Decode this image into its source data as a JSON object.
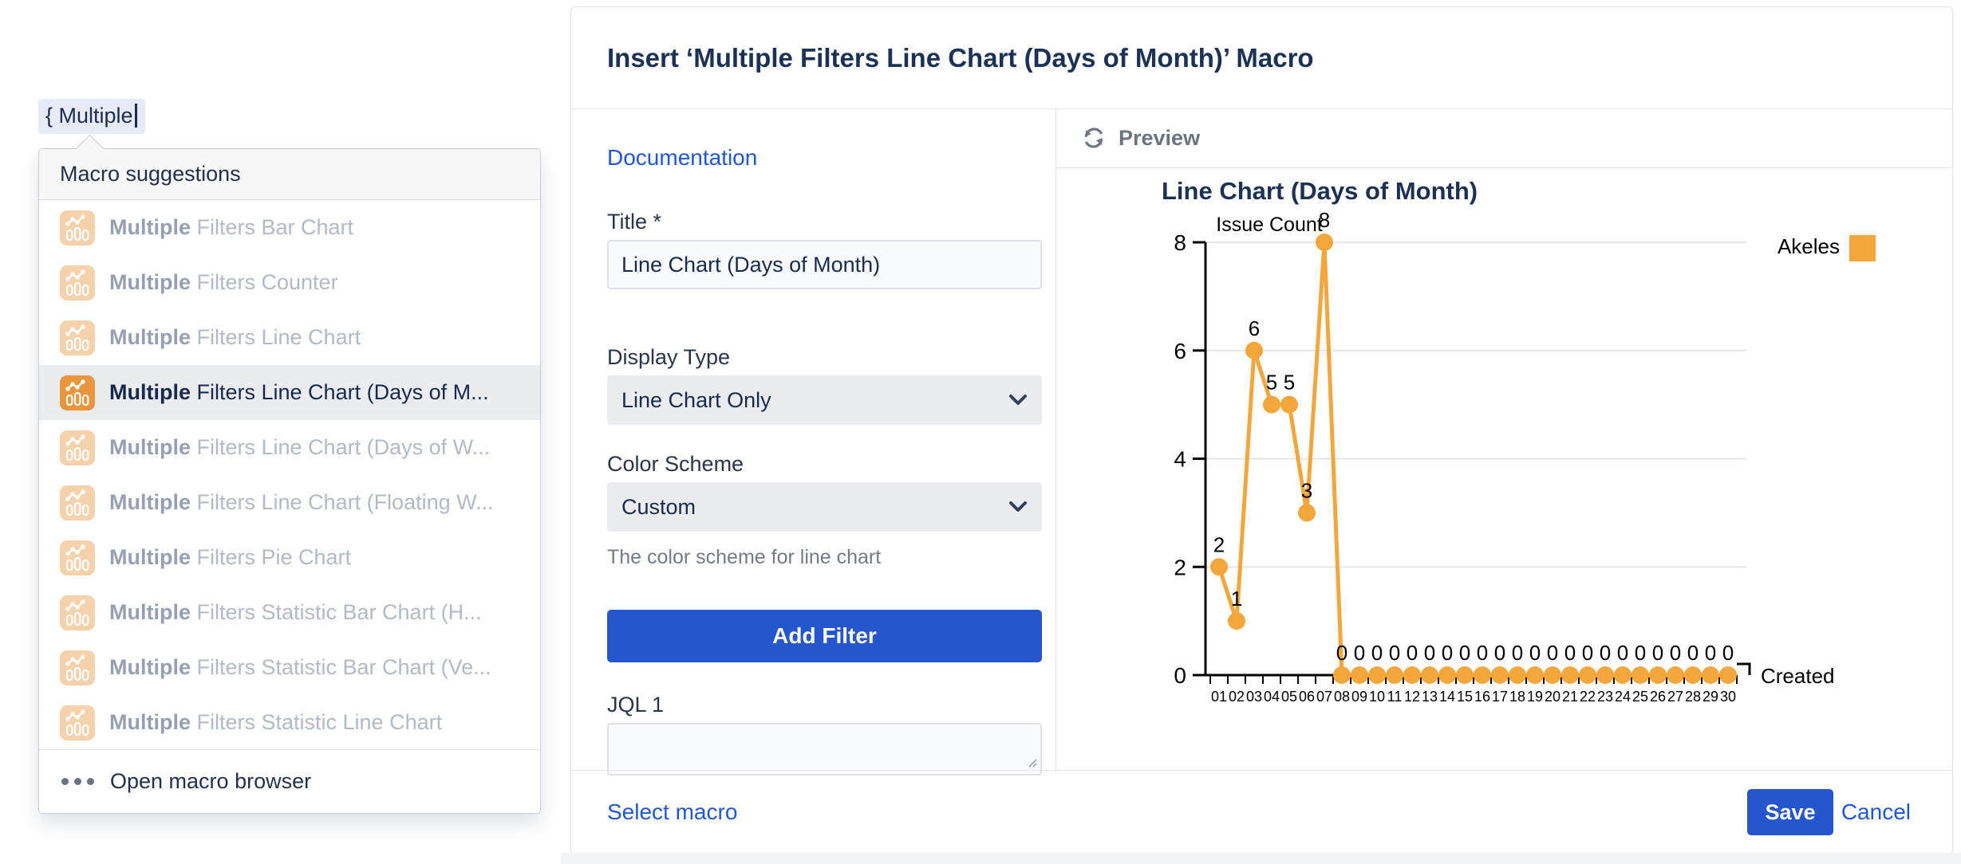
{
  "editor": {
    "token_text": "{ Multiple",
    "suggestions": {
      "header": "Macro suggestions",
      "items": [
        {
          "bold": "Multiple",
          "rest": " Filters Bar Chart",
          "selected": false
        },
        {
          "bold": "Multiple",
          "rest": " Filters Counter",
          "selected": false
        },
        {
          "bold": "Multiple",
          "rest": " Filters Line Chart",
          "selected": false
        },
        {
          "bold": "Multiple",
          "rest": " Filters Line Chart (Days of M...",
          "selected": true
        },
        {
          "bold": "Multiple",
          "rest": " Filters Line Chart (Days of W...",
          "selected": false
        },
        {
          "bold": "Multiple",
          "rest": " Filters Line Chart (Floating W...",
          "selected": false
        },
        {
          "bold": "Multiple",
          "rest": " Filters Pie Chart",
          "selected": false
        },
        {
          "bold": "Multiple",
          "rest": " Filters Statistic Bar Chart (H...",
          "selected": false
        },
        {
          "bold": "Multiple",
          "rest": " Filters Statistic Bar Chart (Ve...",
          "selected": false
        },
        {
          "bold": "Multiple",
          "rest": " Filters Statistic Line Chart",
          "selected": false
        }
      ],
      "footer_label": "Open macro browser"
    }
  },
  "dialog": {
    "title": "Insert ‘Multiple Filters Line Chart (Days of Month)’ Macro",
    "form": {
      "documentation_label": "Documentation",
      "title_field": {
        "label": "Title *",
        "value": "Line Chart (Days of Month)"
      },
      "display_type": {
        "label": "Display Type",
        "value": "Line Chart Only"
      },
      "color_scheme": {
        "label": "Color Scheme",
        "value": "Custom",
        "help": "The color scheme for line chart"
      },
      "add_filter_label": "Add Filter",
      "jql1": {
        "label": "JQL 1",
        "value": ""
      }
    },
    "preview_label": "Preview",
    "footer": {
      "select_macro": "Select macro",
      "save": "Save",
      "cancel": "Cancel"
    }
  },
  "chart_data": {
    "type": "line",
    "title": "Line Chart (Days of Month)",
    "ylabel": "Issue Count",
    "xlabel": "Created",
    "categories": [
      "01",
      "02",
      "03",
      "04",
      "05",
      "06",
      "07",
      "08",
      "09",
      "10",
      "11",
      "12",
      "13",
      "14",
      "15",
      "16",
      "17",
      "18",
      "19",
      "20",
      "21",
      "22",
      "23",
      "24",
      "25",
      "26",
      "27",
      "28",
      "29",
      "30"
    ],
    "series": [
      {
        "name": "Akeles",
        "color": "#F2A63C",
        "values": [
          2,
          1,
          6,
          5,
          5,
          3,
          8,
          0,
          0,
          0,
          0,
          0,
          0,
          0,
          0,
          0,
          0,
          0,
          0,
          0,
          0,
          0,
          0,
          0,
          0,
          0,
          0,
          0,
          0,
          0
        ]
      }
    ],
    "ylim": [
      0,
      8
    ],
    "yticks": [
      0,
      2,
      4,
      6,
      8
    ],
    "grid": true,
    "legend_position": "top-right",
    "point_labels": true
  },
  "colors": {
    "accent_blue": "#2656CE",
    "link_blue": "#2257D3",
    "macro_icon_orange": "#E8953C",
    "series_orange": "#F2A63C",
    "grid_gray": "#E6E6E6",
    "axis_black": "#000000"
  }
}
